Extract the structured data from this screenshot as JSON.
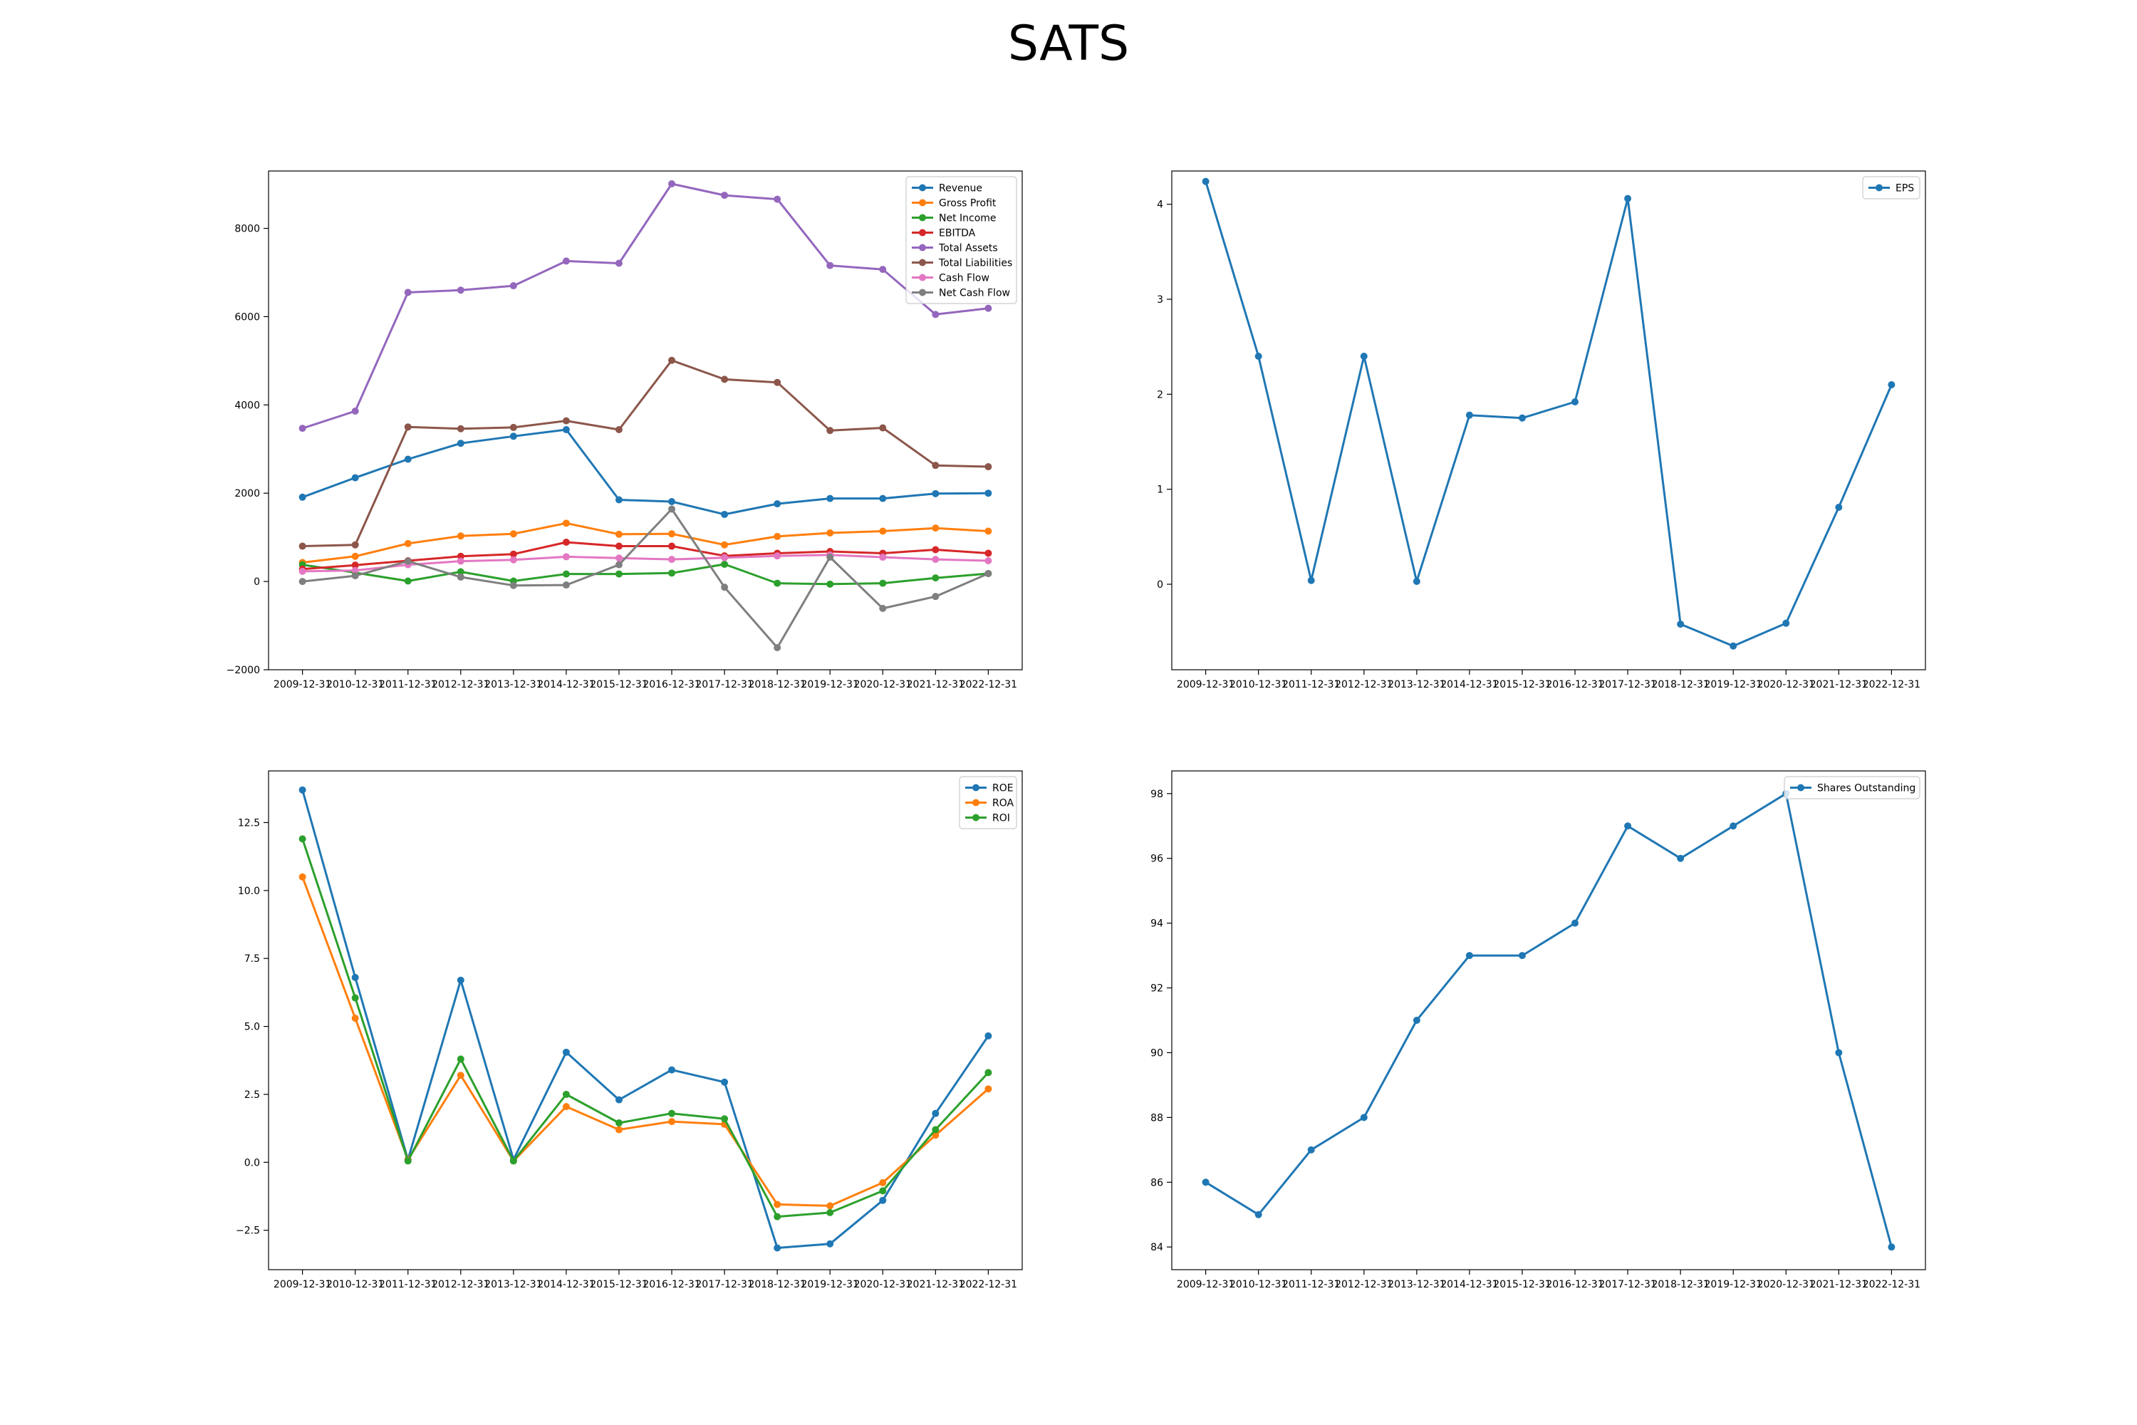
{
  "title": "SATS",
  "categories": [
    "2009-12-31",
    "2010-12-31",
    "2011-12-31",
    "2012-12-31",
    "2013-12-31",
    "2014-12-31",
    "2015-12-31",
    "2016-12-31",
    "2017-12-31",
    "2018-12-31",
    "2019-12-31",
    "2020-12-31",
    "2021-12-31",
    "2022-12-31"
  ],
  "colors": [
    "#1f77b4",
    "#ff7f0e",
    "#2ca02c",
    "#d62728",
    "#9467bd",
    "#8c564b",
    "#e377c2",
    "#7f7f7f"
  ],
  "chart_data": [
    {
      "type": "line",
      "legend": "top-right",
      "ylim": [
        -2000,
        9300
      ],
      "yticks": [
        -2000,
        0,
        2000,
        4000,
        6000,
        8000
      ],
      "series": [
        {
          "name": "Revenue",
          "color": "#1f77b4",
          "values": [
            1910,
            2350,
            2770,
            3130,
            3290,
            3440,
            1850,
            1810,
            1520,
            1760,
            1880,
            1880,
            1990,
            2000
          ]
        },
        {
          "name": "Gross Profit",
          "color": "#ff7f0e",
          "values": [
            430,
            570,
            860,
            1030,
            1080,
            1320,
            1070,
            1080,
            830,
            1020,
            1100,
            1140,
            1210,
            1140
          ]
        },
        {
          "name": "Net Income",
          "color": "#2ca02c",
          "values": [
            380,
            200,
            10,
            220,
            10,
            170,
            170,
            190,
            390,
            -40,
            -60,
            -40,
            80,
            180
          ]
        },
        {
          "name": "EBITDA",
          "color": "#d62728",
          "values": [
            280,
            370,
            470,
            570,
            620,
            890,
            800,
            800,
            580,
            640,
            680,
            640,
            720,
            640
          ]
        },
        {
          "name": "Total Assets",
          "color": "#9467bd",
          "values": [
            3470,
            3860,
            6550,
            6600,
            6700,
            7260,
            7210,
            9010,
            8750,
            8660,
            7160,
            7070,
            6050,
            6190
          ]
        },
        {
          "name": "Total Liabilities",
          "color": "#8c564b",
          "values": [
            800,
            830,
            3500,
            3460,
            3490,
            3640,
            3440,
            5010,
            4580,
            4510,
            3420,
            3480,
            2630,
            2600
          ]
        },
        {
          "name": "Cash Flow",
          "color": "#e377c2",
          "values": [
            230,
            250,
            380,
            460,
            490,
            560,
            530,
            500,
            540,
            580,
            600,
            550,
            500,
            470
          ]
        },
        {
          "name": "Net Cash Flow",
          "color": "#7f7f7f",
          "values": [
            0,
            130,
            460,
            100,
            -90,
            -80,
            380,
            1640,
            -130,
            -1500,
            550,
            -610,
            -340,
            180
          ]
        }
      ]
    },
    {
      "type": "line",
      "legend": "top-right",
      "ylim": [
        -0.9,
        4.35
      ],
      "yticks": [
        0,
        1,
        2,
        3,
        4
      ],
      "series": [
        {
          "name": "EPS",
          "color": "#1f77b4",
          "values": [
            4.24,
            2.4,
            0.04,
            2.4,
            0.03,
            1.78,
            1.75,
            1.92,
            4.06,
            -0.42,
            -0.65,
            -0.41,
            0.81,
            2.1
          ]
        }
      ]
    },
    {
      "type": "line",
      "legend": "top-right",
      "ylim": [
        -3.95,
        14.4
      ],
      "yticks": [
        -2.5,
        0.0,
        2.5,
        5.0,
        7.5,
        10.0,
        12.5
      ],
      "series": [
        {
          "name": "ROE",
          "color": "#1f77b4",
          "values": [
            13.7,
            6.8,
            0.1,
            6.7,
            0.1,
            4.05,
            2.3,
            3.4,
            2.95,
            -3.15,
            -3.0,
            -1.4,
            1.8,
            4.65
          ]
        },
        {
          "name": "ROA",
          "color": "#ff7f0e",
          "values": [
            10.5,
            5.3,
            0.1,
            3.2,
            0.05,
            2.05,
            1.2,
            1.5,
            1.4,
            -1.55,
            -1.6,
            -0.75,
            1.0,
            2.7
          ]
        },
        {
          "name": "ROI",
          "color": "#2ca02c",
          "values": [
            11.9,
            6.05,
            0.05,
            3.8,
            0.05,
            2.5,
            1.45,
            1.8,
            1.6,
            -2.0,
            -1.85,
            -1.05,
            1.2,
            3.3
          ]
        }
      ]
    },
    {
      "type": "line",
      "legend": "top-right",
      "ylim": [
        83.3,
        98.7
      ],
      "yticks": [
        84,
        86,
        88,
        90,
        92,
        94,
        96,
        98
      ],
      "series": [
        {
          "name": "Shares Outstanding",
          "color": "#1f77b4",
          "values": [
            86,
            85,
            87,
            88,
            91,
            93,
            93,
            94,
            97,
            96,
            97,
            98,
            90,
            84
          ]
        }
      ]
    }
  ]
}
